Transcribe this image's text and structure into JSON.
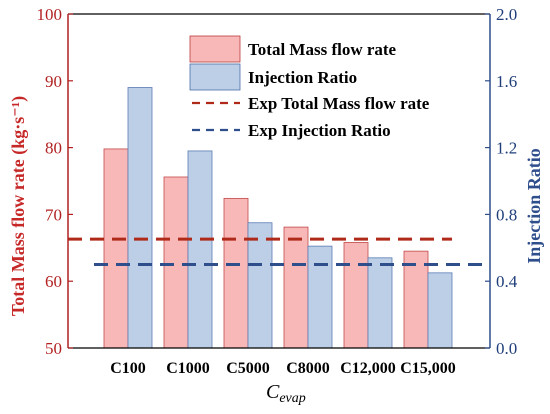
{
  "chart_data": {
    "type": "bar",
    "categories": [
      "C100",
      "C1000",
      "C5000",
      "C8000",
      "C12,000",
      "C15,000"
    ],
    "series": [
      {
        "name": "Total Mass flow rate",
        "axis": "left",
        "values": [
          79.8,
          75.6,
          72.4,
          68.1,
          65.8,
          64.5
        ],
        "color": "#f8b8b8"
      },
      {
        "name": "Injection Ratio",
        "axis": "right",
        "values": [
          1.56,
          1.18,
          0.75,
          0.61,
          0.54,
          0.45
        ],
        "color": "#bccfe6"
      }
    ],
    "reference_lines": [
      {
        "name": "Exp Total Mass flow rate",
        "axis": "left",
        "value": 66.3,
        "color": "#b02a1a",
        "style": "dashed"
      },
      {
        "name": "Exp Injection Ratio",
        "axis": "right",
        "value": 0.5,
        "color": "#2e4e8c",
        "style": "dashed"
      }
    ],
    "xlabel_main": "C",
    "xlabel_sub": "evap",
    "ylabel_left": "Total Mass flow rate (kg·s⁻¹)",
    "ylabel_right": "Injection Ratio",
    "ylim_left": [
      50,
      100
    ],
    "ylim_right": [
      0.0,
      2.0
    ],
    "yticks_left": [
      "50",
      "60",
      "70",
      "80",
      "90",
      "100"
    ],
    "yticks_right": [
      "0.0",
      "0.4",
      "0.8",
      "1.2",
      "1.6",
      "2.0"
    ],
    "legend_position": "top-right",
    "grid": false,
    "colors": {
      "left_axis": "#b22222",
      "right_axis": "#2e4e8c"
    }
  }
}
